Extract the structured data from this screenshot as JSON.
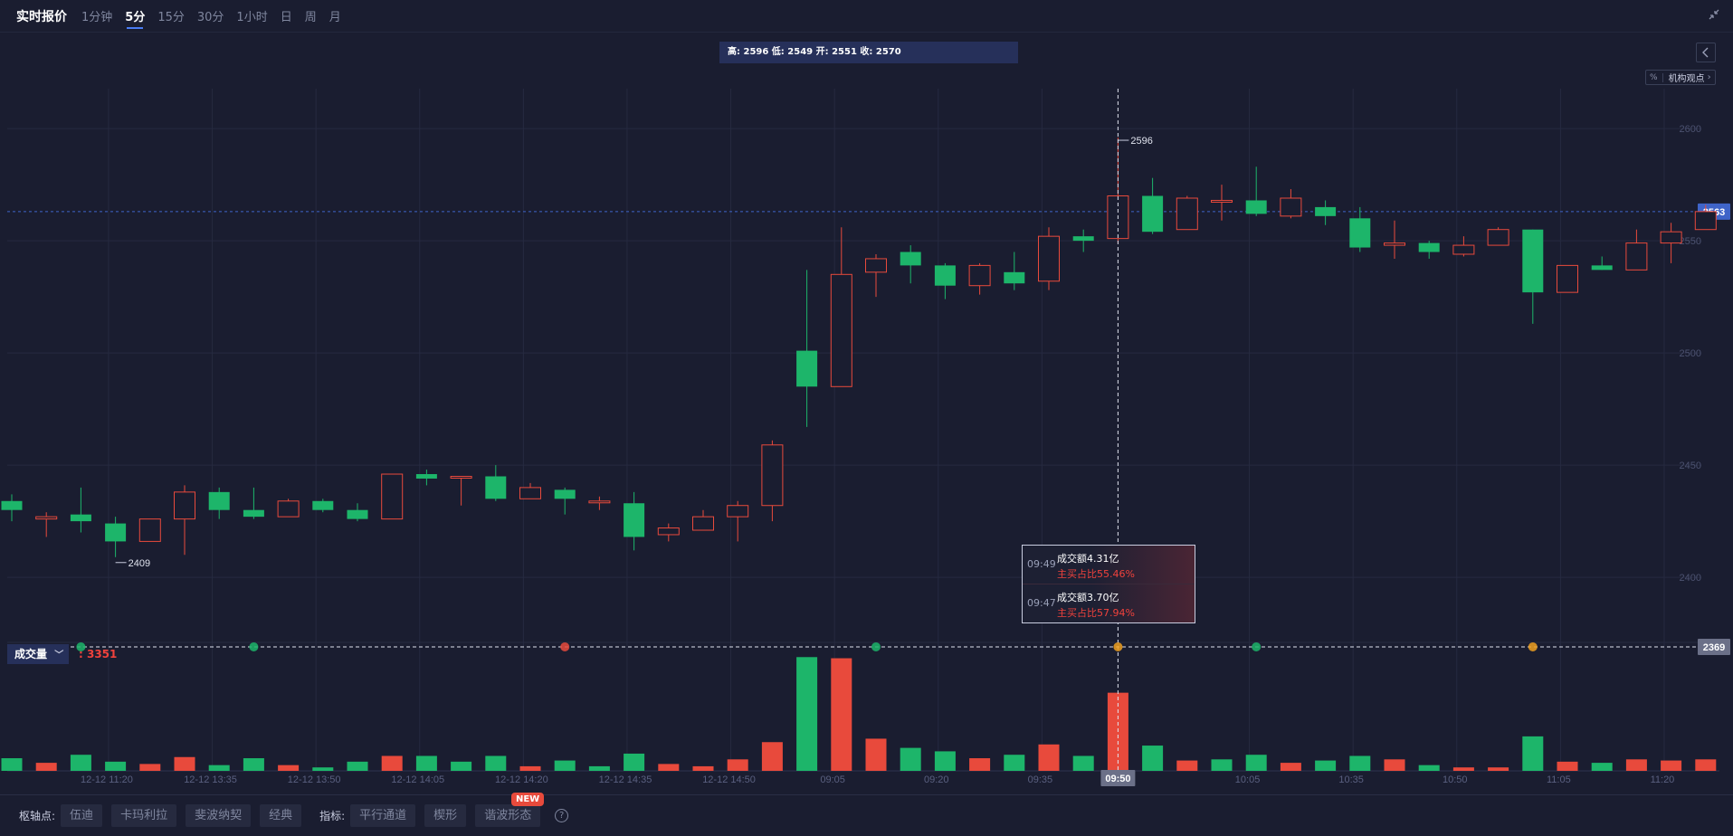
{
  "header": {
    "title": "实时报价",
    "periods": [
      "1分钟",
      "5分",
      "15分",
      "30分",
      "1小时",
      "日",
      "周",
      "月"
    ],
    "active_period": "5分"
  },
  "ohlc_summary": "高: 2596 低: 2549 开: 2551 收: 2570",
  "institution_tag": {
    "mini": "%",
    "label": "机构观点"
  },
  "volume_indicator": {
    "label": "成交量",
    "value": ": 3351"
  },
  "tooltip": {
    "rows": [
      {
        "time": "09:49",
        "amount": "成交额4.31亿",
        "ratio": "主买占比55.46%"
      },
      {
        "time": "09:47",
        "amount": "成交额3.70亿",
        "ratio": "主买占比57.94%"
      }
    ]
  },
  "bottom_toolbar": {
    "pivot_label": "枢轴点:",
    "pivot_buttons": [
      "伍迪",
      "卡玛利拉",
      "斐波纳契",
      "经典"
    ],
    "indicator_label": "指标:",
    "indicator_buttons": [
      "平行通道",
      "楔形",
      "谐波形态"
    ],
    "new_badge": "NEW",
    "help": "?"
  },
  "colors": {
    "up": "#e84a3c",
    "down": "#1db56a",
    "background": "#1a1d30",
    "accent": "#4a7cf3"
  },
  "chart_data": {
    "type": "candlestick",
    "y_ticks": [
      2400,
      2450,
      2500,
      2550,
      2600
    ],
    "ylim": [
      2371,
      2619
    ],
    "x_ticks": [
      {
        "label": "12-12 11:20",
        "i": 2
      },
      {
        "label": "12-12 13:35",
        "i": 5
      },
      {
        "label": "12-12 13:50",
        "i": 8
      },
      {
        "label": "12-12 14:05",
        "i": 11
      },
      {
        "label": "12-12 14:20",
        "i": 14
      },
      {
        "label": "12-12 14:35",
        "i": 17
      },
      {
        "label": "12-12 14:50",
        "i": 20
      },
      {
        "label": "09:05",
        "i": 23
      },
      {
        "label": "09:20",
        "i": 26
      },
      {
        "label": "09:35",
        "i": 29
      },
      {
        "label": "10:05",
        "i": 35
      },
      {
        "label": "10:35",
        "i": 38
      },
      {
        "label": "10:50",
        "i": 41
      },
      {
        "label": "11:05",
        "i": 44
      },
      {
        "label": "11:20",
        "i": 47
      }
    ],
    "current_price": "2563",
    "current_price_value": 2563,
    "crosshair": {
      "index": 32,
      "time_label": "09:50",
      "price_label": "2369",
      "price_value": 2369
    },
    "high_label": "2596",
    "low_label": "2409",
    "high_label_index": 32,
    "low_label_index": 3,
    "candles": [
      {
        "o": 2434,
        "h": 2437,
        "l": 2425,
        "c": 2430
      },
      {
        "o": 2426,
        "h": 2429,
        "l": 2418,
        "c": 2427
      },
      {
        "o": 2428,
        "h": 2440,
        "l": 2420,
        "c": 2425
      },
      {
        "o": 2424,
        "h": 2427,
        "l": 2409,
        "c": 2416
      },
      {
        "o": 2416,
        "h": 2426,
        "l": 2416,
        "c": 2426
      },
      {
        "o": 2426,
        "h": 2441,
        "l": 2410,
        "c": 2438
      },
      {
        "o": 2438,
        "h": 2440,
        "l": 2426,
        "c": 2430
      },
      {
        "o": 2430,
        "h": 2440,
        "l": 2426,
        "c": 2427
      },
      {
        "o": 2427,
        "h": 2435,
        "l": 2427,
        "c": 2434
      },
      {
        "o": 2434,
        "h": 2435,
        "l": 2429,
        "c": 2430
      },
      {
        "o": 2430,
        "h": 2433,
        "l": 2425,
        "c": 2426
      },
      {
        "o": 2426,
        "h": 2446,
        "l": 2426,
        "c": 2446
      },
      {
        "o": 2446,
        "h": 2448,
        "l": 2441,
        "c": 2444
      },
      {
        "o": 2445,
        "h": 2445,
        "l": 2432,
        "c": 2445
      },
      {
        "o": 2445,
        "h": 2450,
        "l": 2434,
        "c": 2435
      },
      {
        "o": 2435,
        "h": 2442,
        "l": 2435,
        "c": 2440
      },
      {
        "o": 2439,
        "h": 2440,
        "l": 2428,
        "c": 2435
      },
      {
        "o": 2434,
        "h": 2436,
        "l": 2430,
        "c": 2434
      },
      {
        "o": 2433,
        "h": 2438,
        "l": 2412,
        "c": 2418
      },
      {
        "o": 2419,
        "h": 2424,
        "l": 2416,
        "c": 2422
      },
      {
        "o": 2421,
        "h": 2430,
        "l": 2421,
        "c": 2427
      },
      {
        "o": 2427,
        "h": 2434,
        "l": 2416,
        "c": 2432
      },
      {
        "o": 2432,
        "h": 2461,
        "l": 2425,
        "c": 2459
      },
      {
        "o": 2501,
        "h": 2537,
        "l": 2467,
        "c": 2485
      },
      {
        "o": 2485,
        "h": 2556,
        "l": 2485,
        "c": 2535
      },
      {
        "o": 2536,
        "h": 2544,
        "l": 2525,
        "c": 2542
      },
      {
        "o": 2545,
        "h": 2548,
        "l": 2531,
        "c": 2539
      },
      {
        "o": 2539,
        "h": 2540,
        "l": 2524,
        "c": 2530
      },
      {
        "o": 2530,
        "h": 2540,
        "l": 2526,
        "c": 2539
      },
      {
        "o": 2536,
        "h": 2545,
        "l": 2528,
        "c": 2531
      },
      {
        "o": 2532,
        "h": 2556,
        "l": 2528,
        "c": 2552
      },
      {
        "o": 2552,
        "h": 2555,
        "l": 2545,
        "c": 2550
      },
      {
        "o": 2551,
        "h": 2596,
        "l": 2549,
        "c": 2570
      },
      {
        "o": 2570,
        "h": 2578,
        "l": 2553,
        "c": 2554
      },
      {
        "o": 2555,
        "h": 2570,
        "l": 2555,
        "c": 2569
      },
      {
        "o": 2568,
        "h": 2575,
        "l": 2559,
        "c": 2568
      },
      {
        "o": 2568,
        "h": 2583,
        "l": 2561,
        "c": 2562
      },
      {
        "o": 2561,
        "h": 2573,
        "l": 2560,
        "c": 2569
      },
      {
        "o": 2565,
        "h": 2568,
        "l": 2557,
        "c": 2561
      },
      {
        "o": 2560,
        "h": 2565,
        "l": 2545,
        "c": 2547
      },
      {
        "o": 2548,
        "h": 2559,
        "l": 2542,
        "c": 2549
      },
      {
        "o": 2549,
        "h": 2550,
        "l": 2542,
        "c": 2545
      },
      {
        "o": 2544,
        "h": 2552,
        "l": 2543,
        "c": 2548
      },
      {
        "o": 2548,
        "h": 2556,
        "l": 2548,
        "c": 2555
      },
      {
        "o": 2555,
        "h": 2555,
        "l": 2513,
        "c": 2527
      },
      {
        "o": 2527,
        "h": 2539,
        "l": 2527,
        "c": 2539
      },
      {
        "o": 2539,
        "h": 2543,
        "l": 2537,
        "c": 2537
      },
      {
        "o": 2537,
        "h": 2555,
        "l": 2537,
        "c": 2549
      },
      {
        "o": 2549,
        "h": 2558,
        "l": 2540,
        "c": 2554
      },
      {
        "o": 2555,
        "h": 2566,
        "l": 2555,
        "c": 2563
      }
    ],
    "volume_scale": 100,
    "volumes": [
      {
        "v": 11,
        "up": false
      },
      {
        "v": 7,
        "up": true
      },
      {
        "v": 14,
        "up": false
      },
      {
        "v": 8,
        "up": false
      },
      {
        "v": 6,
        "up": true
      },
      {
        "v": 12,
        "up": true
      },
      {
        "v": 5,
        "up": false
      },
      {
        "v": 11,
        "up": false
      },
      {
        "v": 5,
        "up": true
      },
      {
        "v": 3,
        "up": false
      },
      {
        "v": 8,
        "up": false
      },
      {
        "v": 13,
        "up": true
      },
      {
        "v": 13,
        "up": false
      },
      {
        "v": 8,
        "up": false
      },
      {
        "v": 13,
        "up": false
      },
      {
        "v": 4,
        "up": true
      },
      {
        "v": 9,
        "up": false
      },
      {
        "v": 4,
        "up": false
      },
      {
        "v": 15,
        "up": false
      },
      {
        "v": 6,
        "up": true
      },
      {
        "v": 4,
        "up": true
      },
      {
        "v": 10,
        "up": true
      },
      {
        "v": 25,
        "up": true
      },
      {
        "v": 99,
        "up": false
      },
      {
        "v": 98,
        "up": true
      },
      {
        "v": 28,
        "up": true
      },
      {
        "v": 20,
        "up": false
      },
      {
        "v": 17,
        "up": false
      },
      {
        "v": 11,
        "up": true
      },
      {
        "v": 14,
        "up": false
      },
      {
        "v": 23,
        "up": true
      },
      {
        "v": 13,
        "up": false
      },
      {
        "v": 68,
        "up": true
      },
      {
        "v": 22,
        "up": false
      },
      {
        "v": 9,
        "up": true
      },
      {
        "v": 10,
        "up": false
      },
      {
        "v": 14,
        "up": false
      },
      {
        "v": 7,
        "up": true
      },
      {
        "v": 9,
        "up": false
      },
      {
        "v": 13,
        "up": false
      },
      {
        "v": 10,
        "up": true
      },
      {
        "v": 5,
        "up": false
      },
      {
        "v": 3,
        "up": true
      },
      {
        "v": 3,
        "up": true
      },
      {
        "v": 30,
        "up": false
      },
      {
        "v": 8,
        "up": true
      },
      {
        "v": 7,
        "up": false
      },
      {
        "v": 10,
        "up": true
      },
      {
        "v": 9,
        "up": true
      },
      {
        "v": 10,
        "up": true
      }
    ],
    "event_markers": [
      {
        "i": 2,
        "color": "#1db56a"
      },
      {
        "i": 7,
        "color": "#1db56a"
      },
      {
        "i": 16,
        "color": "#e84a3c"
      },
      {
        "i": 25,
        "color": "#1db56a"
      },
      {
        "i": 32,
        "color": "#f0a020"
      },
      {
        "i": 36,
        "color": "#1db56a"
      },
      {
        "i": 44,
        "color": "#f0a020"
      }
    ]
  }
}
